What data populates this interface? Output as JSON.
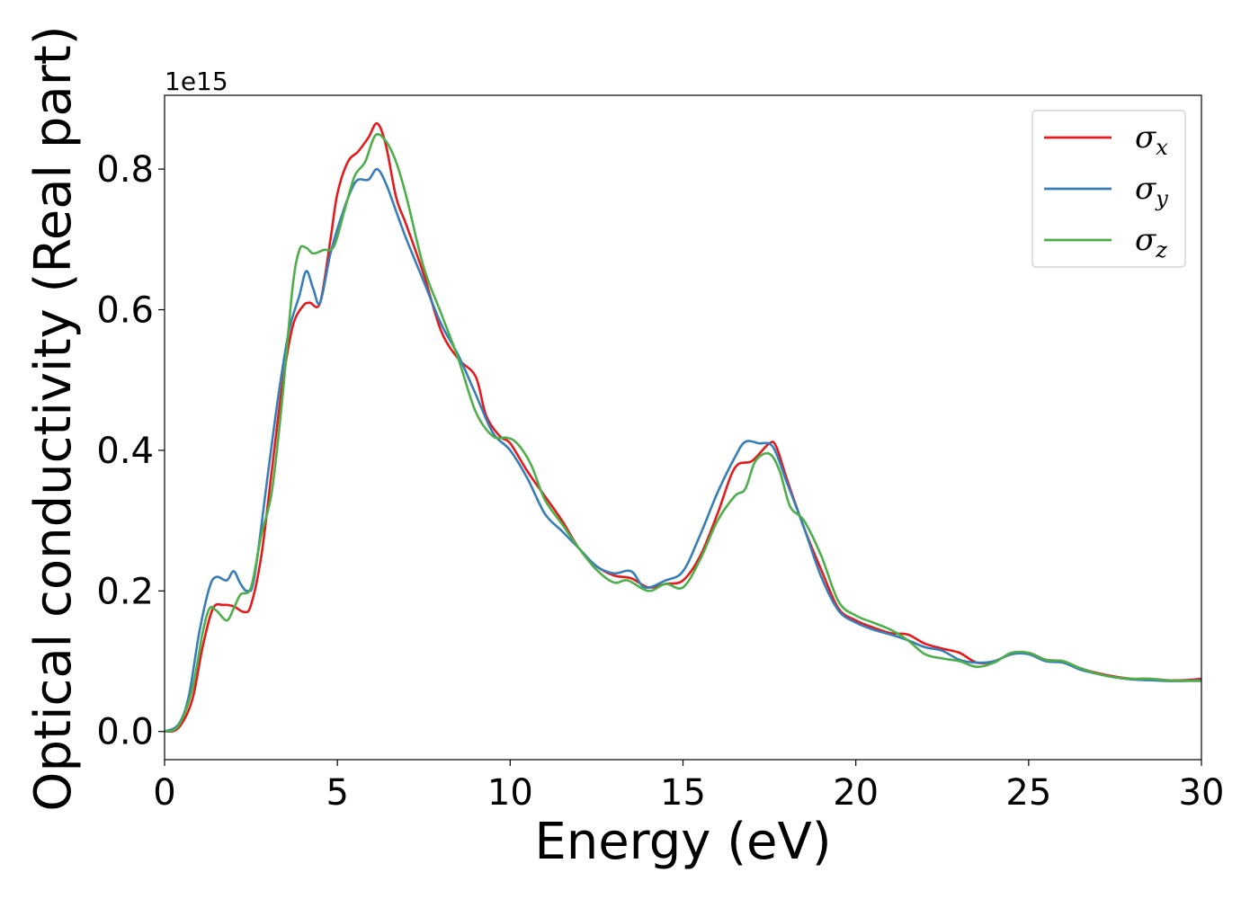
{
  "chart_data": {
    "type": "line",
    "xlabel": "Energy (eV)",
    "ylabel": "Optical conductivity (Real part)",
    "y_offset_text": "1e15",
    "xlim": [
      0,
      30
    ],
    "ylim": [
      -0.04,
      0.905
    ],
    "x_ticks": [
      "0",
      "5",
      "10",
      "15",
      "20",
      "25",
      "30"
    ],
    "y_ticks": [
      "0.0",
      "0.2",
      "0.4",
      "0.6",
      "0.8"
    ],
    "grid": false,
    "legend_position": "top-right",
    "series": [
      {
        "name": "σx",
        "symbol": "σ",
        "subscript": "x",
        "color": "#e41a1c",
        "points": [
          [
            0,
            0
          ],
          [
            0.4,
            0.005
          ],
          [
            0.8,
            0.045
          ],
          [
            1.1,
            0.12
          ],
          [
            1.4,
            0.175
          ],
          [
            1.7,
            0.18
          ],
          [
            2.0,
            0.178
          ],
          [
            2.3,
            0.17
          ],
          [
            2.5,
            0.18
          ],
          [
            2.8,
            0.25
          ],
          [
            3.1,
            0.37
          ],
          [
            3.4,
            0.49
          ],
          [
            3.7,
            0.575
          ],
          [
            4.0,
            0.605
          ],
          [
            4.2,
            0.61
          ],
          [
            4.5,
            0.61
          ],
          [
            4.8,
            0.7
          ],
          [
            5.0,
            0.765
          ],
          [
            5.3,
            0.81
          ],
          [
            5.6,
            0.825
          ],
          [
            5.9,
            0.845
          ],
          [
            6.15,
            0.865
          ],
          [
            6.4,
            0.835
          ],
          [
            6.7,
            0.76
          ],
          [
            7.0,
            0.72
          ],
          [
            7.5,
            0.65
          ],
          [
            8.0,
            0.57
          ],
          [
            8.5,
            0.53
          ],
          [
            9.0,
            0.505
          ],
          [
            9.3,
            0.45
          ],
          [
            9.7,
            0.42
          ],
          [
            10.0,
            0.41
          ],
          [
            10.5,
            0.37
          ],
          [
            11.0,
            0.335
          ],
          [
            11.5,
            0.3
          ],
          [
            12.0,
            0.26
          ],
          [
            12.5,
            0.235
          ],
          [
            13.0,
            0.222
          ],
          [
            13.5,
            0.218
          ],
          [
            14.0,
            0.205
          ],
          [
            14.5,
            0.21
          ],
          [
            15.0,
            0.215
          ],
          [
            15.5,
            0.25
          ],
          [
            16.0,
            0.31
          ],
          [
            16.5,
            0.375
          ],
          [
            17.0,
            0.385
          ],
          [
            17.5,
            0.41
          ],
          [
            17.7,
            0.405
          ],
          [
            18.0,
            0.36
          ],
          [
            18.5,
            0.29
          ],
          [
            19.0,
            0.23
          ],
          [
            19.5,
            0.175
          ],
          [
            20.0,
            0.158
          ],
          [
            20.5,
            0.148
          ],
          [
            21.0,
            0.14
          ],
          [
            21.5,
            0.138
          ],
          [
            22.0,
            0.125
          ],
          [
            22.5,
            0.118
          ],
          [
            23.0,
            0.112
          ],
          [
            23.5,
            0.098
          ],
          [
            24.0,
            0.1
          ],
          [
            24.5,
            0.11
          ],
          [
            25.0,
            0.112
          ],
          [
            25.5,
            0.102
          ],
          [
            26.0,
            0.1
          ],
          [
            26.5,
            0.09
          ],
          [
            27.0,
            0.083
          ],
          [
            27.5,
            0.078
          ],
          [
            28.0,
            0.075
          ],
          [
            28.5,
            0.075
          ],
          [
            29.0,
            0.073
          ],
          [
            29.5,
            0.073
          ],
          [
            30.0,
            0.075
          ]
        ]
      },
      {
        "name": "σy",
        "symbol": "σ",
        "subscript": "y",
        "color": "#377eb8",
        "points": [
          [
            0,
            0
          ],
          [
            0.4,
            0.01
          ],
          [
            0.7,
            0.05
          ],
          [
            1.0,
            0.14
          ],
          [
            1.3,
            0.205
          ],
          [
            1.5,
            0.22
          ],
          [
            1.8,
            0.215
          ],
          [
            2.0,
            0.228
          ],
          [
            2.2,
            0.21
          ],
          [
            2.4,
            0.2
          ],
          [
            2.6,
            0.22
          ],
          [
            3.0,
            0.37
          ],
          [
            3.3,
            0.48
          ],
          [
            3.6,
            0.57
          ],
          [
            3.9,
            0.62
          ],
          [
            4.1,
            0.655
          ],
          [
            4.3,
            0.63
          ],
          [
            4.5,
            0.61
          ],
          [
            4.8,
            0.68
          ],
          [
            5.1,
            0.73
          ],
          [
            5.4,
            0.77
          ],
          [
            5.6,
            0.785
          ],
          [
            5.9,
            0.785
          ],
          [
            6.15,
            0.8
          ],
          [
            6.4,
            0.78
          ],
          [
            6.7,
            0.74
          ],
          [
            7.0,
            0.7
          ],
          [
            7.5,
            0.64
          ],
          [
            8.0,
            0.58
          ],
          [
            8.5,
            0.535
          ],
          [
            9.0,
            0.48
          ],
          [
            9.5,
            0.425
          ],
          [
            10.0,
            0.4
          ],
          [
            10.5,
            0.36
          ],
          [
            11.0,
            0.31
          ],
          [
            11.5,
            0.285
          ],
          [
            12.0,
            0.26
          ],
          [
            12.5,
            0.235
          ],
          [
            13.0,
            0.225
          ],
          [
            13.5,
            0.228
          ],
          [
            13.9,
            0.205
          ],
          [
            14.5,
            0.215
          ],
          [
            15.0,
            0.228
          ],
          [
            15.5,
            0.28
          ],
          [
            16.0,
            0.34
          ],
          [
            16.5,
            0.39
          ],
          [
            16.8,
            0.412
          ],
          [
            17.2,
            0.41
          ],
          [
            17.6,
            0.405
          ],
          [
            18.0,
            0.355
          ],
          [
            18.5,
            0.29
          ],
          [
            19.0,
            0.22
          ],
          [
            19.5,
            0.172
          ],
          [
            20.0,
            0.155
          ],
          [
            20.5,
            0.145
          ],
          [
            21.0,
            0.138
          ],
          [
            21.5,
            0.13
          ],
          [
            22.0,
            0.12
          ],
          [
            22.5,
            0.115
          ],
          [
            23.0,
            0.102
          ],
          [
            23.5,
            0.098
          ],
          [
            24.0,
            0.1
          ],
          [
            24.5,
            0.11
          ],
          [
            25.0,
            0.11
          ],
          [
            25.5,
            0.1
          ],
          [
            26.0,
            0.098
          ],
          [
            26.5,
            0.088
          ],
          [
            27.0,
            0.082
          ],
          [
            27.5,
            0.077
          ],
          [
            28.0,
            0.074
          ],
          [
            28.5,
            0.073
          ],
          [
            29.0,
            0.072
          ],
          [
            29.5,
            0.072
          ],
          [
            30.0,
            0.073
          ]
        ]
      },
      {
        "name": "σz",
        "symbol": "σ",
        "subscript": "z",
        "color": "#4daf4a",
        "points": [
          [
            0,
            0
          ],
          [
            0.4,
            0.008
          ],
          [
            0.8,
            0.06
          ],
          [
            1.1,
            0.14
          ],
          [
            1.3,
            0.175
          ],
          [
            1.5,
            0.172
          ],
          [
            1.8,
            0.158
          ],
          [
            2.0,
            0.175
          ],
          [
            2.2,
            0.195
          ],
          [
            2.5,
            0.205
          ],
          [
            2.8,
            0.28
          ],
          [
            3.1,
            0.34
          ],
          [
            3.4,
            0.47
          ],
          [
            3.7,
            0.63
          ],
          [
            3.9,
            0.685
          ],
          [
            4.1,
            0.688
          ],
          [
            4.3,
            0.68
          ],
          [
            4.6,
            0.685
          ],
          [
            4.9,
            0.69
          ],
          [
            5.2,
            0.74
          ],
          [
            5.5,
            0.79
          ],
          [
            5.8,
            0.81
          ],
          [
            6.1,
            0.848
          ],
          [
            6.4,
            0.84
          ],
          [
            6.7,
            0.81
          ],
          [
            7.0,
            0.76
          ],
          [
            7.5,
            0.66
          ],
          [
            8.0,
            0.595
          ],
          [
            8.5,
            0.53
          ],
          [
            9.0,
            0.455
          ],
          [
            9.5,
            0.42
          ],
          [
            9.9,
            0.418
          ],
          [
            10.2,
            0.41
          ],
          [
            10.6,
            0.38
          ],
          [
            11.0,
            0.33
          ],
          [
            11.5,
            0.295
          ],
          [
            12.0,
            0.26
          ],
          [
            12.5,
            0.23
          ],
          [
            13.0,
            0.212
          ],
          [
            13.4,
            0.215
          ],
          [
            14.0,
            0.2
          ],
          [
            14.5,
            0.21
          ],
          [
            15.0,
            0.205
          ],
          [
            15.5,
            0.245
          ],
          [
            16.0,
            0.3
          ],
          [
            16.5,
            0.335
          ],
          [
            16.8,
            0.345
          ],
          [
            17.1,
            0.385
          ],
          [
            17.5,
            0.395
          ],
          [
            17.8,
            0.37
          ],
          [
            18.1,
            0.32
          ],
          [
            18.5,
            0.3
          ],
          [
            19.0,
            0.25
          ],
          [
            19.5,
            0.185
          ],
          [
            20.0,
            0.165
          ],
          [
            20.5,
            0.155
          ],
          [
            21.0,
            0.145
          ],
          [
            21.5,
            0.13
          ],
          [
            22.0,
            0.11
          ],
          [
            22.5,
            0.104
          ],
          [
            23.0,
            0.1
          ],
          [
            23.5,
            0.092
          ],
          [
            24.0,
            0.098
          ],
          [
            24.5,
            0.112
          ],
          [
            25.0,
            0.112
          ],
          [
            25.5,
            0.102
          ],
          [
            26.0,
            0.1
          ],
          [
            26.5,
            0.09
          ],
          [
            27.0,
            0.082
          ],
          [
            27.5,
            0.077
          ],
          [
            28.0,
            0.075
          ],
          [
            28.5,
            0.075
          ],
          [
            29.0,
            0.073
          ],
          [
            29.5,
            0.072
          ],
          [
            30.0,
            0.072
          ]
        ]
      }
    ]
  }
}
